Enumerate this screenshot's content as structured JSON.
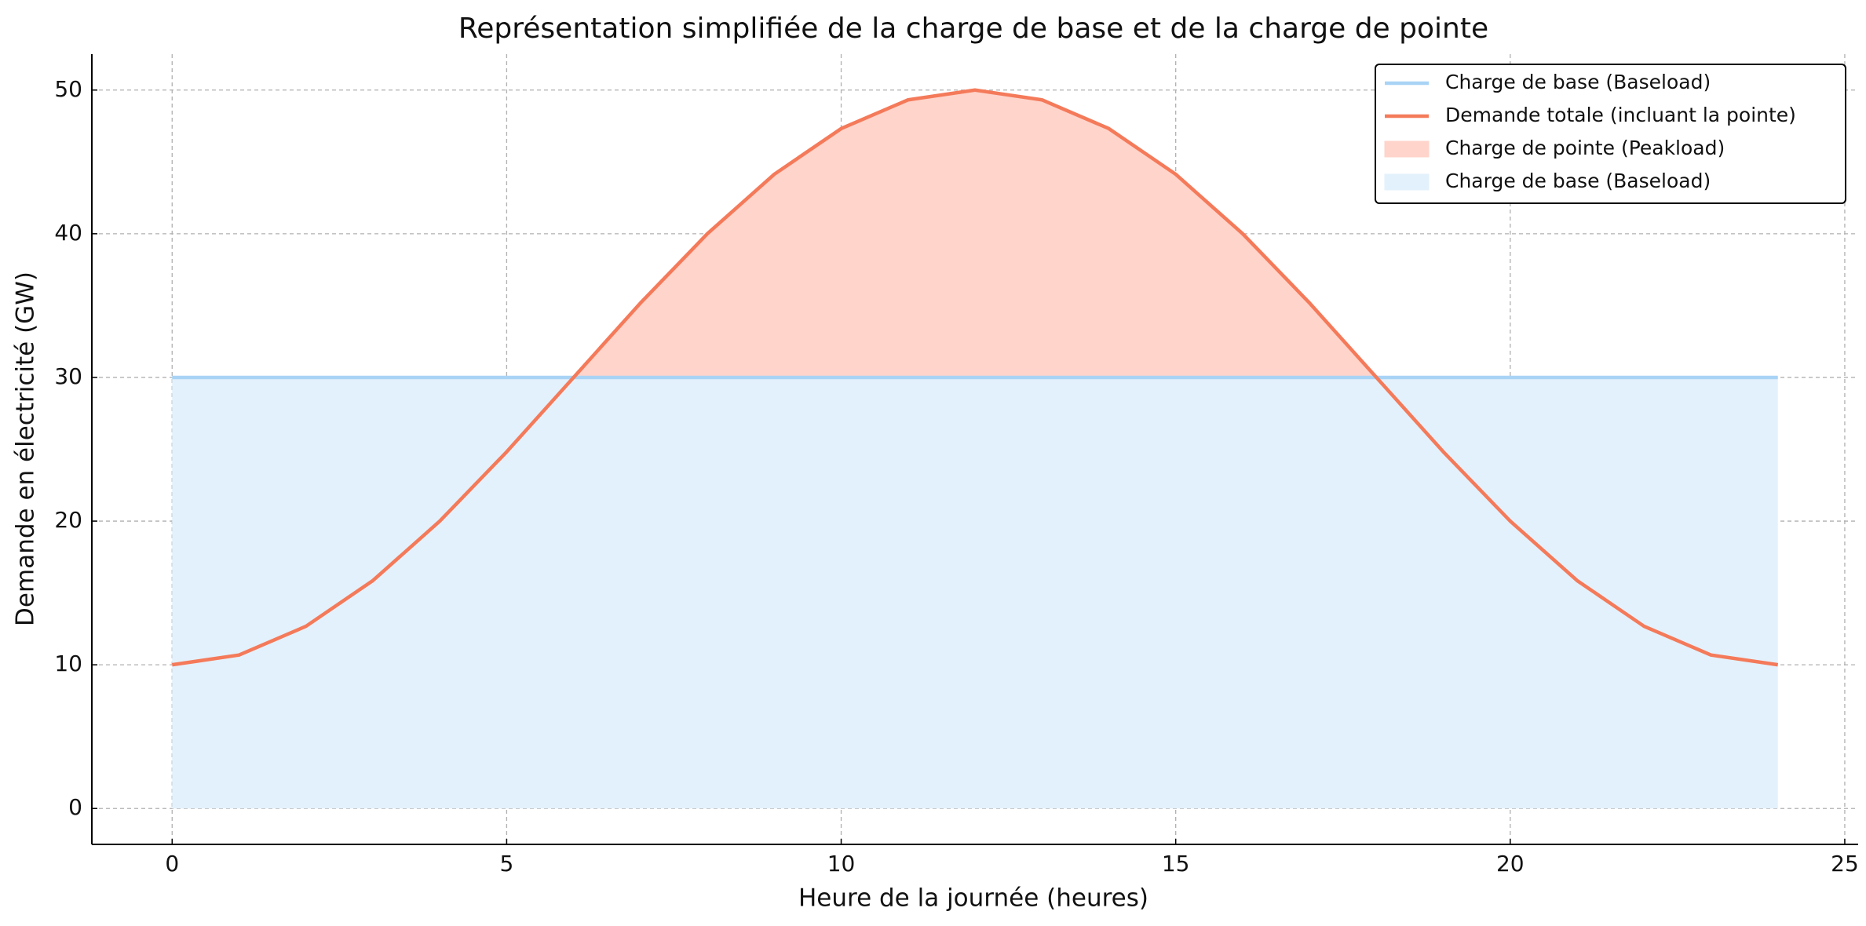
{
  "chart_data": {
    "type": "line",
    "title": "Représentation simplifiée de la charge de base et de la charge de pointe",
    "x_label": "Heure de la journée (heures)",
    "y_label": "Demande en électricité (GW)",
    "x": [
      0,
      1,
      2,
      3,
      4,
      5,
      6,
      7,
      8,
      9,
      10,
      11,
      12,
      13,
      14,
      15,
      16,
      17,
      18,
      19,
      20,
      21,
      22,
      23,
      24
    ],
    "series": [
      {
        "name": "Charge de base (Baseload)",
        "color": "#a9d3f5",
        "values": [
          30,
          30,
          30,
          30,
          30,
          30,
          30,
          30,
          30,
          30,
          30,
          30,
          30,
          30,
          30,
          30,
          30,
          30,
          30,
          30,
          30,
          30,
          30,
          30,
          30
        ]
      },
      {
        "name": "Demande totale (incluant la pointe)",
        "color": "#f47a5a",
        "values": [
          10,
          10.68,
          12.68,
          15.86,
          20,
          24.82,
          30,
          35.18,
          40,
          44.14,
          47.32,
          49.32,
          50,
          49.32,
          47.32,
          44.14,
          40,
          35.18,
          30,
          24.82,
          20,
          15.86,
          12.68,
          10.68,
          10
        ]
      }
    ],
    "fills": [
      {
        "name": "Charge de pointe (Peakload)",
        "color": "#ffd4cb"
      },
      {
        "name": "Charge de base (Baseload)",
        "color": "#e3f1fc"
      }
    ],
    "xlim": [
      -1.2,
      25.2
    ],
    "ylim": [
      -2.5,
      52.5
    ],
    "xticks": [
      0,
      5,
      10,
      15,
      20,
      25
    ],
    "yticks": [
      0,
      10,
      20,
      30,
      40,
      50
    ],
    "grid": true,
    "legend": "upper right"
  }
}
